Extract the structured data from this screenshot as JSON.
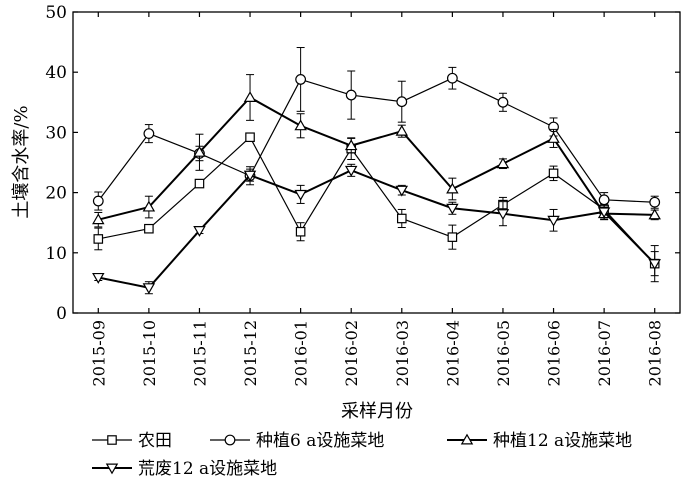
{
  "chart_data": {
    "type": "line",
    "title": "",
    "xlabel": "采样月份",
    "ylabel": "土壤含水率/%",
    "ylim": [
      0,
      50
    ],
    "yticks": [
      "0",
      "10",
      "20",
      "30",
      "40",
      "50"
    ],
    "grid": false,
    "legend_position": "bottom",
    "categories": [
      "2015-09",
      "2015-10",
      "2015-11",
      "2015-12",
      "2016-01",
      "2016-02",
      "2016-03",
      "2016-04",
      "2016-05",
      "2016-06",
      "2016-07",
      "2016-08"
    ],
    "series": [
      {
        "name": "农田",
        "marker": "square",
        "values": [
          12.3,
          14.0,
          21.5,
          29.2,
          13.5,
          27.3,
          15.7,
          12.6,
          18.0,
          23.2,
          17.2,
          8.2
        ],
        "errors": [
          1.8,
          0.6,
          0.5,
          0.7,
          1.5,
          1.8,
          1.5,
          2.0,
          1.2,
          1.2,
          1.0,
          3.0
        ]
      },
      {
        "name": "种植6 a设施菜地",
        "marker": "circle",
        "values": [
          18.6,
          29.8,
          26.5,
          22.8,
          38.8,
          36.2,
          35.1,
          39.0,
          35.0,
          30.9,
          18.8,
          18.4
        ],
        "errors": [
          1.5,
          1.5,
          1.2,
          1.5,
          5.3,
          4.0,
          3.4,
          1.8,
          1.5,
          1.5,
          1.2,
          1.0
        ]
      },
      {
        "name": "种植12 a设施菜地",
        "marker": "triangle-up",
        "values": [
          15.5,
          17.6,
          26.7,
          35.8,
          31.1,
          27.8,
          30.2,
          20.6,
          24.8,
          29.0,
          16.5,
          16.3
        ],
        "errors": [
          1.2,
          1.8,
          3.0,
          3.8,
          2.0,
          1.2,
          1.0,
          1.8,
          0.8,
          1.5,
          1.0,
          0.8
        ]
      },
      {
        "name": "荒废12 a设施菜地",
        "marker": "triangle-down",
        "values": [
          5.9,
          4.2,
          13.7,
          22.9,
          19.7,
          23.7,
          20.4,
          17.4,
          16.5,
          15.4,
          16.8,
          8.2
        ],
        "errors": [
          0.5,
          1.0,
          0.5,
          1.0,
          1.5,
          1.0,
          0.8,
          1.0,
          2.0,
          1.8,
          1.2,
          2.0
        ]
      }
    ]
  }
}
